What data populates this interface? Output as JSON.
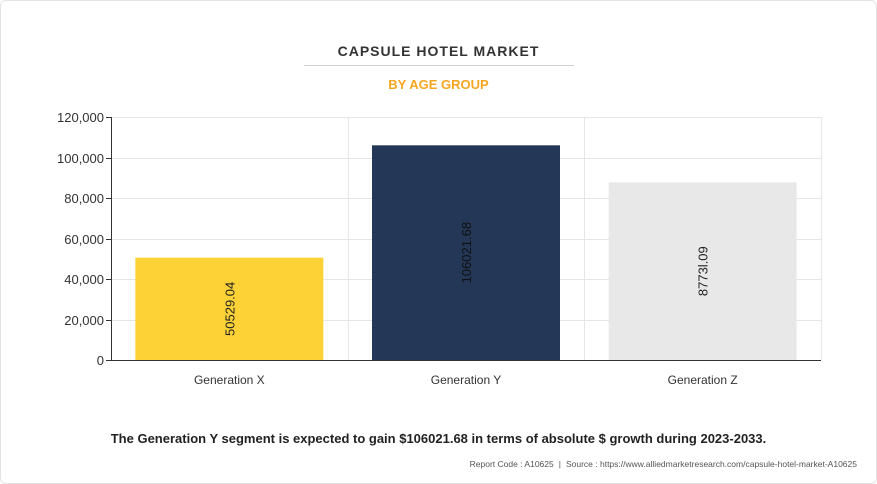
{
  "title": "CAPSULE HOTEL MARKET",
  "subtitle": "BY AGE GROUP",
  "footnote": "The Generation Y segment is expected to gain $106021.68 in terms of absolute $ growth during 2023-2033.",
  "report_code": "Report Code : A10625",
  "source": "Source : https://www.alliedmarketresearch.com/capsule-hotel-market-A10625",
  "chart_data": {
    "type": "bar",
    "categories": [
      "Generation X",
      "Generation Y",
      "Generation Z"
    ],
    "values": [
      50529.04,
      106021.68,
      87731.09
    ],
    "data_labels": [
      "50529.04",
      "106021.68",
      "8773l.09"
    ],
    "colors": [
      "#fdd236",
      "#243757",
      "#e8e8e8"
    ],
    "ylim": [
      0,
      120000
    ],
    "yticks": [
      0,
      20000,
      40000,
      60000,
      80000,
      100000,
      120000
    ],
    "ytick_labels": [
      "0",
      "20,000",
      "40,000",
      "60,000",
      "80,000",
      "100,000",
      "120,000"
    ],
    "grid": true,
    "title": "CAPSULE HOTEL MARKET",
    "subtitle": "BY AGE GROUP",
    "xlabel": "",
    "ylabel": ""
  }
}
